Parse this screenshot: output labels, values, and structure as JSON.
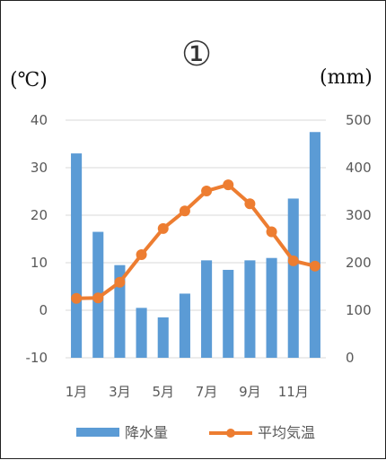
{
  "chart_data": {
    "type": "bar",
    "title": "①",
    "categories": [
      "1月",
      "2月",
      "3月",
      "4月",
      "5月",
      "6月",
      "7月",
      "8月",
      "9月",
      "10月",
      "11月",
      "12月"
    ],
    "x_tick_labels": [
      "1月",
      "3月",
      "5月",
      "7月",
      "9月",
      "11月"
    ],
    "left_axis": {
      "unit_label": "(℃)",
      "ylim": [
        -10,
        40
      ],
      "ticks": [
        "40",
        "30",
        "20",
        "10",
        "0",
        "-10"
      ]
    },
    "right_axis": {
      "unit_label": "(mm)",
      "ylim": [
        0,
        500
      ],
      "ticks": [
        "500",
        "400",
        "300",
        "200",
        "100",
        "0"
      ]
    },
    "series": [
      {
        "name": "降水量",
        "type": "bar",
        "axis": "right",
        "color": "#5b9bd5",
        "values": [
          430,
          265,
          195,
          105,
          85,
          135,
          205,
          185,
          205,
          210,
          335,
          475
        ]
      },
      {
        "name": "平均気温",
        "type": "line",
        "axis": "left",
        "color": "#ed7d31",
        "values": [
          2.5,
          2.6,
          5.9,
          11.7,
          17.2,
          20.9,
          25.1,
          26.4,
          22.4,
          16.5,
          10.4,
          9.3
        ]
      }
    ],
    "legend_position": "bottom",
    "grid": true
  }
}
